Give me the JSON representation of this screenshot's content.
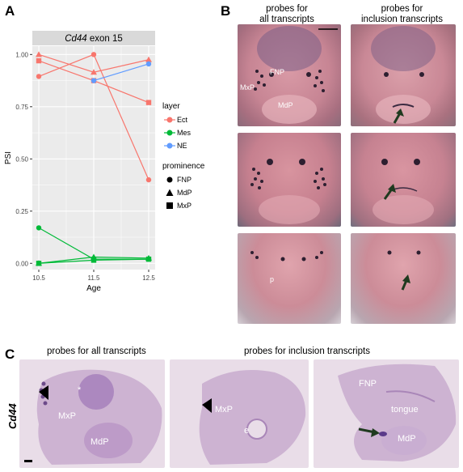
{
  "panel_a": {
    "letter": "A",
    "chart_data": {
      "type": "line",
      "title": "Cd44 exon 15",
      "title_gene": "Cd44",
      "title_rest": " exon 15",
      "xlabel": "Age",
      "ylabel": "PSI",
      "x": [
        10.5,
        11.5,
        12.5
      ],
      "x_tick_labels": [
        "10.5",
        "11.5",
        "12.5"
      ],
      "y_tick_labels": [
        "0.00",
        "0.25",
        "0.50",
        "0.75",
        "1.00"
      ],
      "ylim": [
        -0.03,
        1.04
      ],
      "grid": true,
      "legend_placement": "right",
      "series": [
        {
          "layer": "Ect",
          "prominence": "FNP",
          "values": [
            0.895,
            1.0,
            0.4
          ]
        },
        {
          "layer": "Ect",
          "prominence": "MdP",
          "values": [
            1.0,
            0.915,
            0.975
          ]
        },
        {
          "layer": "Ect",
          "prominence": "MxP",
          "values": [
            0.97,
            0.875,
            0.77
          ]
        },
        {
          "layer": "Mes",
          "prominence": "FNP",
          "values": [
            0.17,
            0.02,
            0.02
          ]
        },
        {
          "layer": "Mes",
          "prominence": "MdP",
          "values": [
            0.0,
            0.03,
            0.025
          ]
        },
        {
          "layer": "Mes",
          "prominence": "MxP",
          "values": [
            0.0,
            0.015,
            0.02
          ]
        },
        {
          "layer": "NE",
          "prominence": "FNP",
          "values": [
            null,
            0.875,
            0.955
          ]
        }
      ],
      "legend": {
        "layer_title": "layer",
        "layers": [
          {
            "name": "Ect",
            "color": "#F8766D"
          },
          {
            "name": "Mes",
            "color": "#00BA38"
          },
          {
            "name": "NE",
            "color": "#619CFF"
          }
        ],
        "prominence_title": "prominence",
        "prominences": [
          {
            "name": "FNP",
            "shape": "circle"
          },
          {
            "name": "MdP",
            "shape": "triangle"
          },
          {
            "name": "MxP",
            "shape": "square"
          }
        ]
      }
    }
  },
  "panel_b": {
    "letter": "B",
    "col1_title_line1": "probes for",
    "col1_title_line2": "all transcripts",
    "col2_title_line1": "probes for",
    "col2_title_line2": "inclusion transcripts",
    "labels": {
      "fnp": "FNP",
      "mxp": "MxP",
      "mdp": "MdP",
      "p": "p"
    }
  },
  "panel_c": {
    "letter": "C",
    "gene_label": "Cd44",
    "left_title": "probes for all transcripts",
    "right_title": "probes for inclusion transcripts",
    "labels": {
      "star": "*",
      "mxp": "MxP",
      "mdp": "MdP",
      "e": "e",
      "fnp": "FNP",
      "tongue": "tongue"
    }
  }
}
